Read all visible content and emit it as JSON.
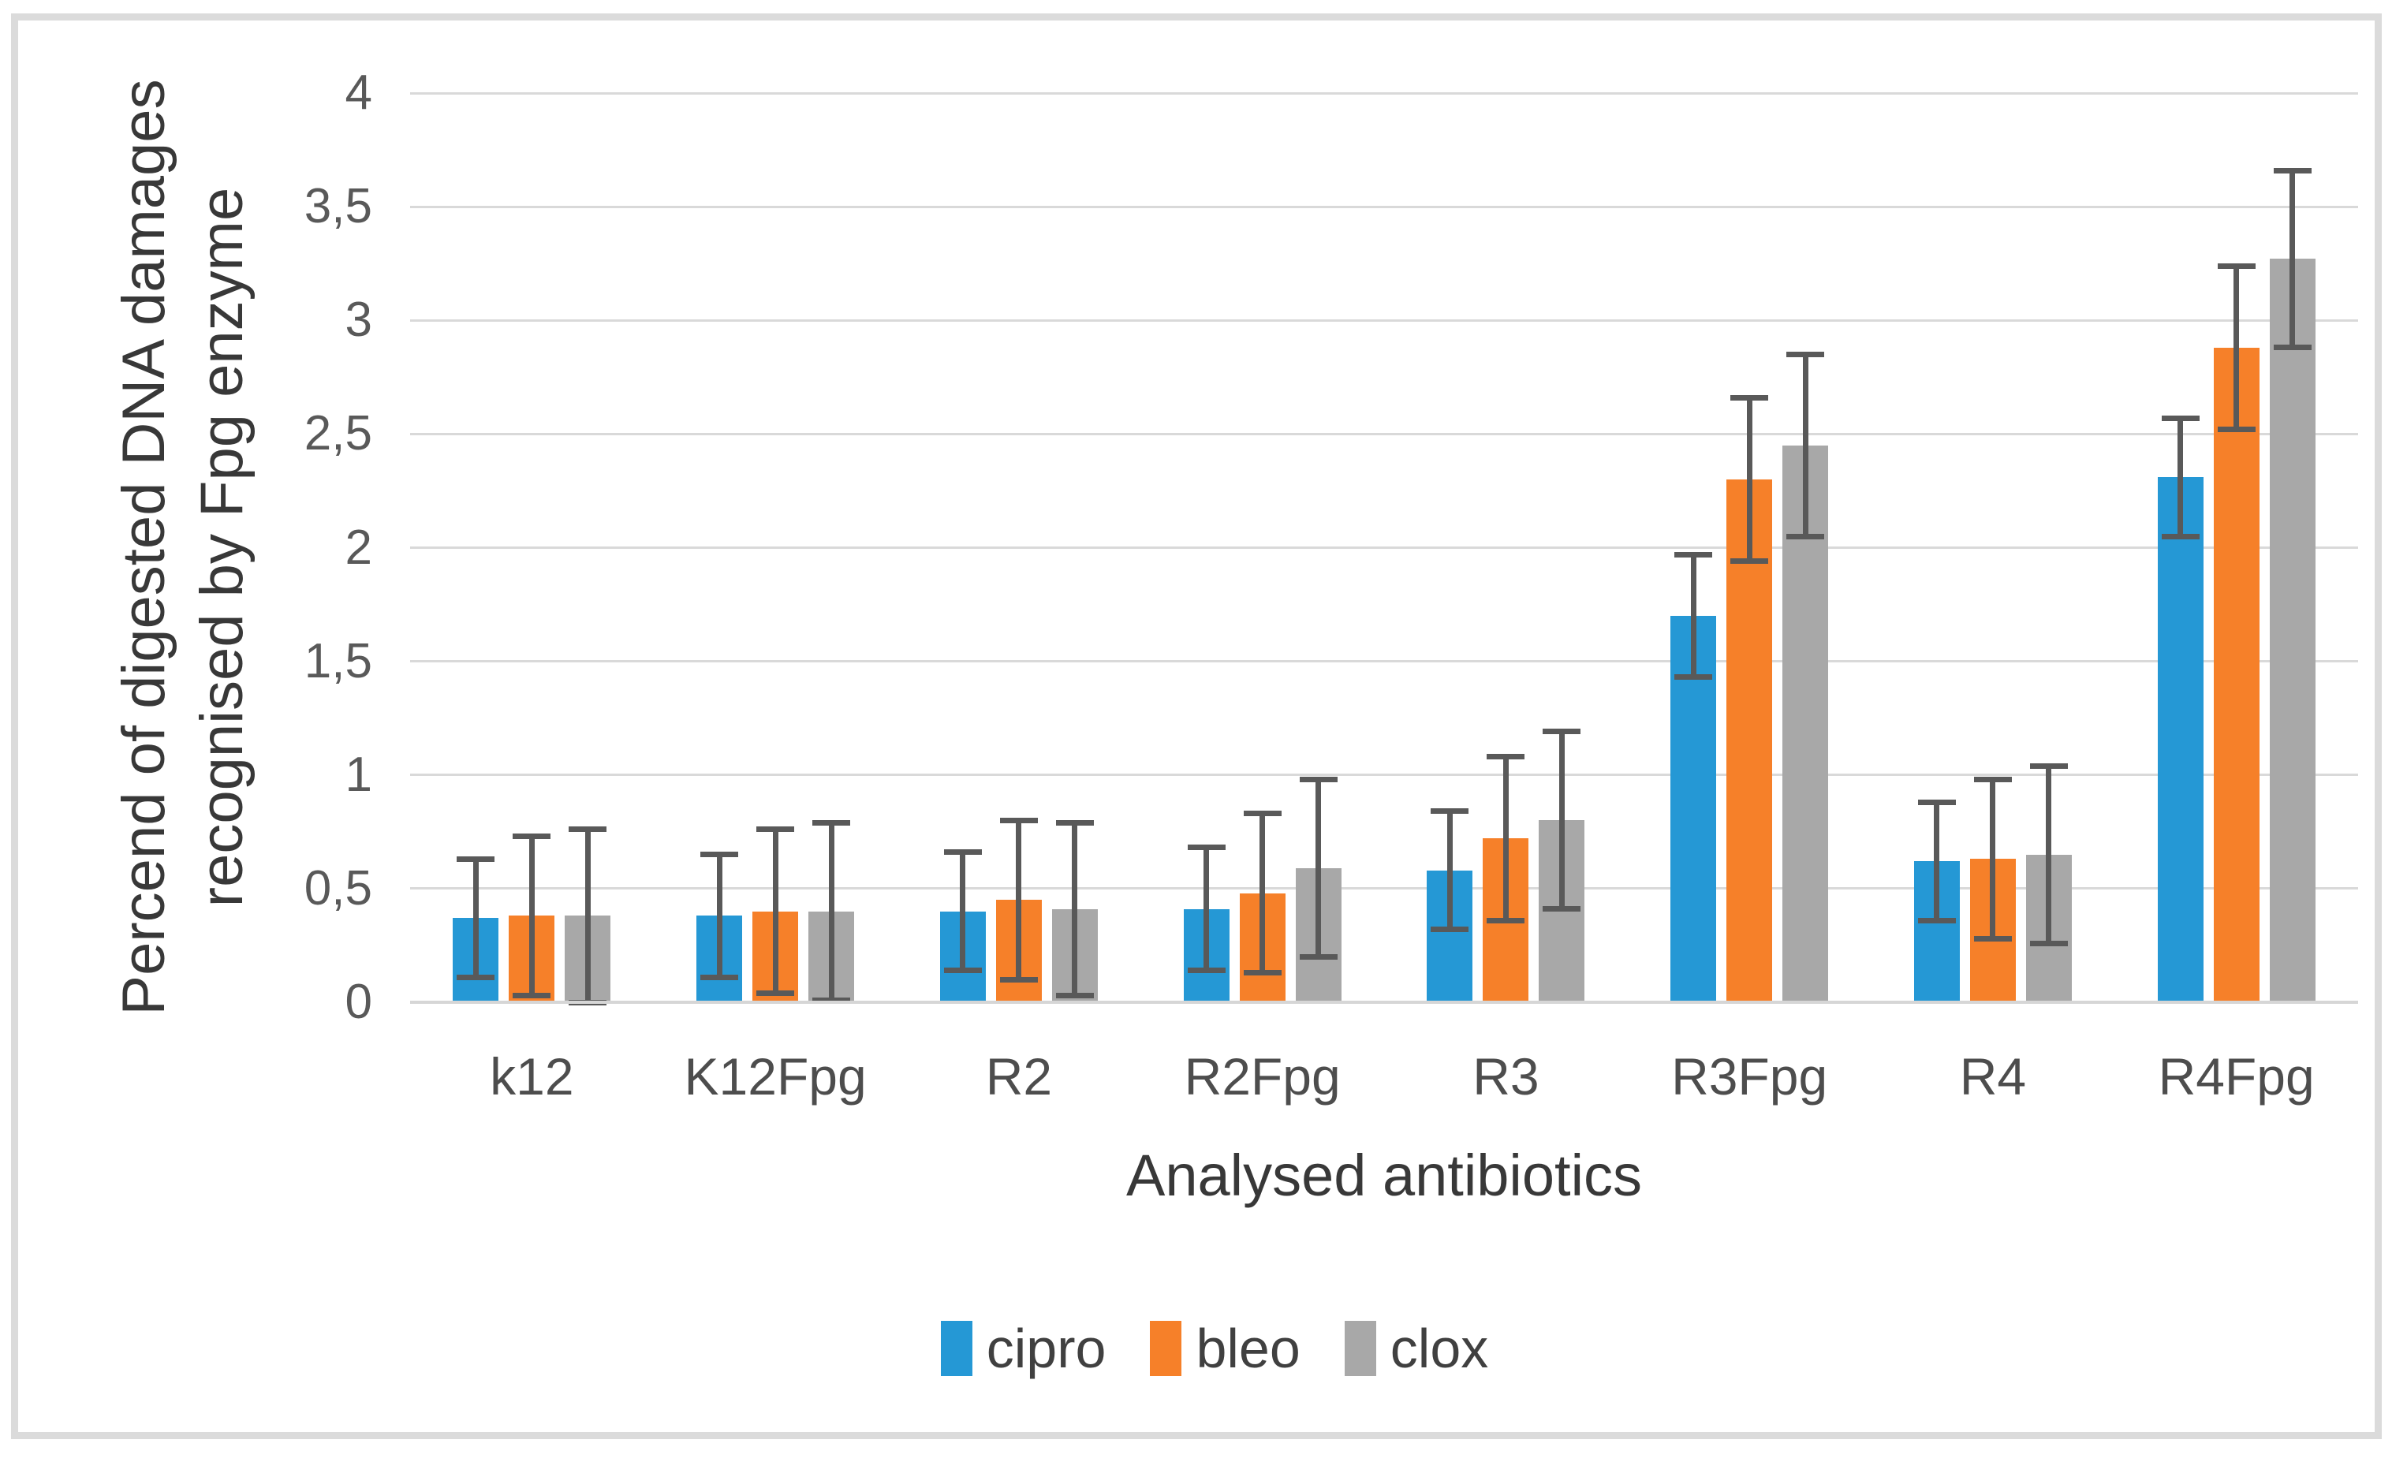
{
  "chart_data": {
    "type": "bar",
    "title": "",
    "xlabel": "Analysed antibiotics",
    "ylabel_line1": "Percend of digested DNA damages",
    "ylabel_line2": "recognised by Fpg enzyme",
    "ylim": [
      0,
      4
    ],
    "ytick_step": 0.5,
    "ytick_labels": [
      "0",
      "0,5",
      "1",
      "1,5",
      "2",
      "2,5",
      "3",
      "3,5",
      "4"
    ],
    "grid": true,
    "legend_position": "bottom",
    "categories": [
      "k12",
      "K12Fpg",
      "R2",
      "R2Fpg",
      "R3",
      "R3Fpg",
      "R4",
      "R4Fpg"
    ],
    "series": [
      {
        "name": "cipro",
        "color": "#2598D5",
        "values": [
          0.37,
          0.38,
          0.4,
          0.41,
          0.58,
          1.7,
          0.62,
          2.31
        ],
        "errors": [
          0.26,
          0.27,
          0.26,
          0.27,
          0.26,
          0.27,
          0.26,
          0.26
        ]
      },
      {
        "name": "bleo",
        "color": "#F68029",
        "values": [
          0.38,
          0.4,
          0.45,
          0.48,
          0.72,
          2.3,
          0.63,
          2.88
        ],
        "errors": [
          0.35,
          0.36,
          0.35,
          0.35,
          0.36,
          0.36,
          0.35,
          0.36
        ]
      },
      {
        "name": "clox",
        "color": "#A8A8A8",
        "values": [
          0.38,
          0.4,
          0.41,
          0.59,
          0.8,
          2.45,
          0.65,
          3.27
        ],
        "errors": [
          0.38,
          0.39,
          0.38,
          0.39,
          0.39,
          0.4,
          0.39,
          0.39
        ]
      }
    ],
    "error_bar_color": "#595959",
    "gridline_color": "#D9D9D9",
    "axis_line_color": "#D6D6D6",
    "tick_label_color": "#595959",
    "category_label_color": "#4D4D4D",
    "axis_title_color": "#383838",
    "legend_text_color": "#404040"
  }
}
